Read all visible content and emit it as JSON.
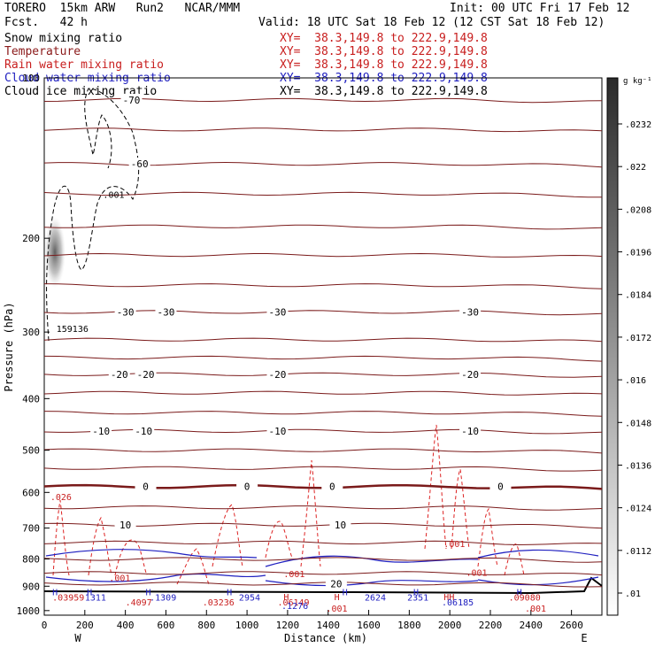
{
  "header": {
    "line1_left": "TORERO  15km ARW   Run2   NCAR/MMM",
    "line1_right": "Init: 00 UTC Fri 17 Feb 12",
    "line2_left": "Fcst.   42 h",
    "line2_right": "Valid: 18 UTC Sat 18 Feb 12 (12 CST Sat 18 Feb 12)",
    "fields": [
      {
        "name": "Snow mixing ratio",
        "xy": "XY=  38.3,149.8 to 222.9,149.8",
        "color": "#000000"
      },
      {
        "name": "Temperature",
        "xy": "XY=  38.3,149.8 to 222.9,149.8",
        "color": "#8b1a1a"
      },
      {
        "name": "Rain water mixing ratio",
        "xy": "XY=  38.3,149.8 to 222.9,149.8",
        "color": "#c81e1e"
      },
      {
        "name": "Cloud water mixing ratio",
        "xy": "XY=  38.3,149.8 to 222.9,149.8",
        "color": "#2020c0"
      },
      {
        "name": "Cloud ice mixing ratio",
        "xy": "XY=  38.3,149.8 to 222.9,149.8",
        "color": "#000000"
      }
    ]
  },
  "chart_data": {
    "type": "contour",
    "xlabel": "Distance (km)",
    "ylabel": "Pressure (hPa)",
    "xlim": [
      0,
      2750
    ],
    "ylim": [
      1020,
      100
    ],
    "y_log_scale": true,
    "x_ticks": [
      "0",
      "200",
      "400",
      "600",
      "800",
      "1000",
      "1200",
      "1400",
      "1600",
      "1800",
      "2000",
      "2200",
      "2400",
      "2600"
    ],
    "y_ticks": [
      "100",
      "200",
      "300",
      "400",
      "500",
      "600",
      "700",
      "800",
      "900",
      "1000"
    ],
    "x_end_labels": {
      "left": "W",
      "right": "E"
    },
    "colorbar": {
      "unit": "g kg⁻¹",
      "labels": [
        ".0232",
        ".022",
        ".0208",
        ".0196",
        ".0184",
        ".0172",
        ".016",
        ".0148",
        ".0136",
        ".0124",
        ".0112",
        ".01"
      ]
    },
    "temperature_contours": [
      {
        "label": "-70",
        "level_hPa": 110
      },
      {
        "label": "-60",
        "level_hPa": 145
      },
      {
        "label": "-30",
        "level_hPa": 275
      },
      {
        "label": "-20",
        "level_hPa": 360
      },
      {
        "label": "-10",
        "level_hPa": 460
      },
      {
        "label": "0",
        "level_hPa": 585
      },
      {
        "label": "10",
        "level_hPa": 690
      },
      {
        "label": "20",
        "level_hPa": 890
      }
    ],
    "temperature_label_positions_km": {
      "-70": [
        430
      ],
      "-60": [
        470
      ],
      "-30": [
        400,
        600,
        1150,
        2100
      ],
      "-20": [
        370,
        500,
        1150,
        2100
      ],
      "-10": [
        280,
        490,
        1150,
        2100
      ],
      "0": [
        500,
        1000,
        1420,
        2250
      ],
      "10": [
        400,
        1460
      ],
      "20": [
        1440
      ]
    },
    "annotations": [
      {
        "text": ".001",
        "x_km": 290,
        "p_hPa": 168,
        "color": "#000000"
      },
      {
        "text": "159136",
        "x_km": 60,
        "p_hPa": 300,
        "color": "#000000"
      },
      {
        "text": ".026",
        "x_km": 30,
        "p_hPa": 620,
        "color": "#c81e1e"
      },
      {
        "text": ".001",
        "x_km": 320,
        "p_hPa": 880,
        "color": "#c81e1e"
      },
      {
        "text": ".001",
        "x_km": 1180,
        "p_hPa": 865,
        "color": "#c81e1e"
      },
      {
        "text": ".001",
        "x_km": 1970,
        "p_hPa": 760,
        "color": "#c81e1e"
      },
      {
        "text": ".001",
        "x_km": 2080,
        "p_hPa": 860,
        "color": "#c81e1e"
      },
      {
        "text": ".001",
        "x_km": 1390,
        "p_hPa": 1005,
        "color": "#c81e1e"
      },
      {
        "text": ".001",
        "x_km": 2370,
        "p_hPa": 1005,
        "color": "#c81e1e"
      },
      {
        "text": "H",
        "x_km": 40,
        "p_hPa": 935,
        "color": "#2020c0"
      },
      {
        "text": "H",
        "x_km": 210,
        "p_hPa": 935,
        "color": "#2020c0"
      },
      {
        "text": "H",
        "x_km": 500,
        "p_hPa": 935,
        "color": "#2020c0"
      },
      {
        "text": "H",
        "x_km": 900,
        "p_hPa": 935,
        "color": "#2020c0"
      },
      {
        "text": "H",
        "x_km": 1470,
        "p_hPa": 935,
        "color": "#2020c0"
      },
      {
        "text": "H",
        "x_km": 1820,
        "p_hPa": 935,
        "color": "#2020c0"
      },
      {
        "text": "H",
        "x_km": 2330,
        "p_hPa": 935,
        "color": "#2020c0"
      },
      {
        "text": ".03959",
        "x_km": 40,
        "p_hPa": 958,
        "color": "#c81e1e"
      },
      {
        "text": "1311",
        "x_km": 200,
        "p_hPa": 958,
        "color": "#2020c0"
      },
      {
        "text": ".1309",
        "x_km": 520,
        "p_hPa": 958,
        "color": "#2020c0"
      },
      {
        "text": ".4097",
        "x_km": 400,
        "p_hPa": 978,
        "color": "#c81e1e"
      },
      {
        "text": ".03236",
        "x_km": 780,
        "p_hPa": 978,
        "color": "#c81e1e"
      },
      {
        "text": "2954",
        "x_km": 960,
        "p_hPa": 958,
        "color": "#2020c0"
      },
      {
        "text": "H",
        "x_km": 1180,
        "p_hPa": 955,
        "color": "#c81e1e"
      },
      {
        "text": ".06149",
        "x_km": 1150,
        "p_hPa": 978,
        "color": "#c81e1e"
      },
      {
        "text": ".1276",
        "x_km": 1170,
        "p_hPa": 993,
        "color": "#2020c0"
      },
      {
        "text": "H",
        "x_km": 1430,
        "p_hPa": 955,
        "color": "#c81e1e"
      },
      {
        "text": "2624",
        "x_km": 1580,
        "p_hPa": 958,
        "color": "#2020c0"
      },
      {
        "text": "2351",
        "x_km": 1790,
        "p_hPa": 958,
        "color": "#2020c0"
      },
      {
        "text": "HH",
        "x_km": 1970,
        "p_hPa": 955,
        "color": "#c81e1e"
      },
      {
        "text": ".06185",
        "x_km": 1960,
        "p_hPa": 978,
        "color": "#2020c0"
      },
      {
        "text": ".09080",
        "x_km": 2290,
        "p_hPa": 958,
        "color": "#c81e1e"
      }
    ]
  }
}
